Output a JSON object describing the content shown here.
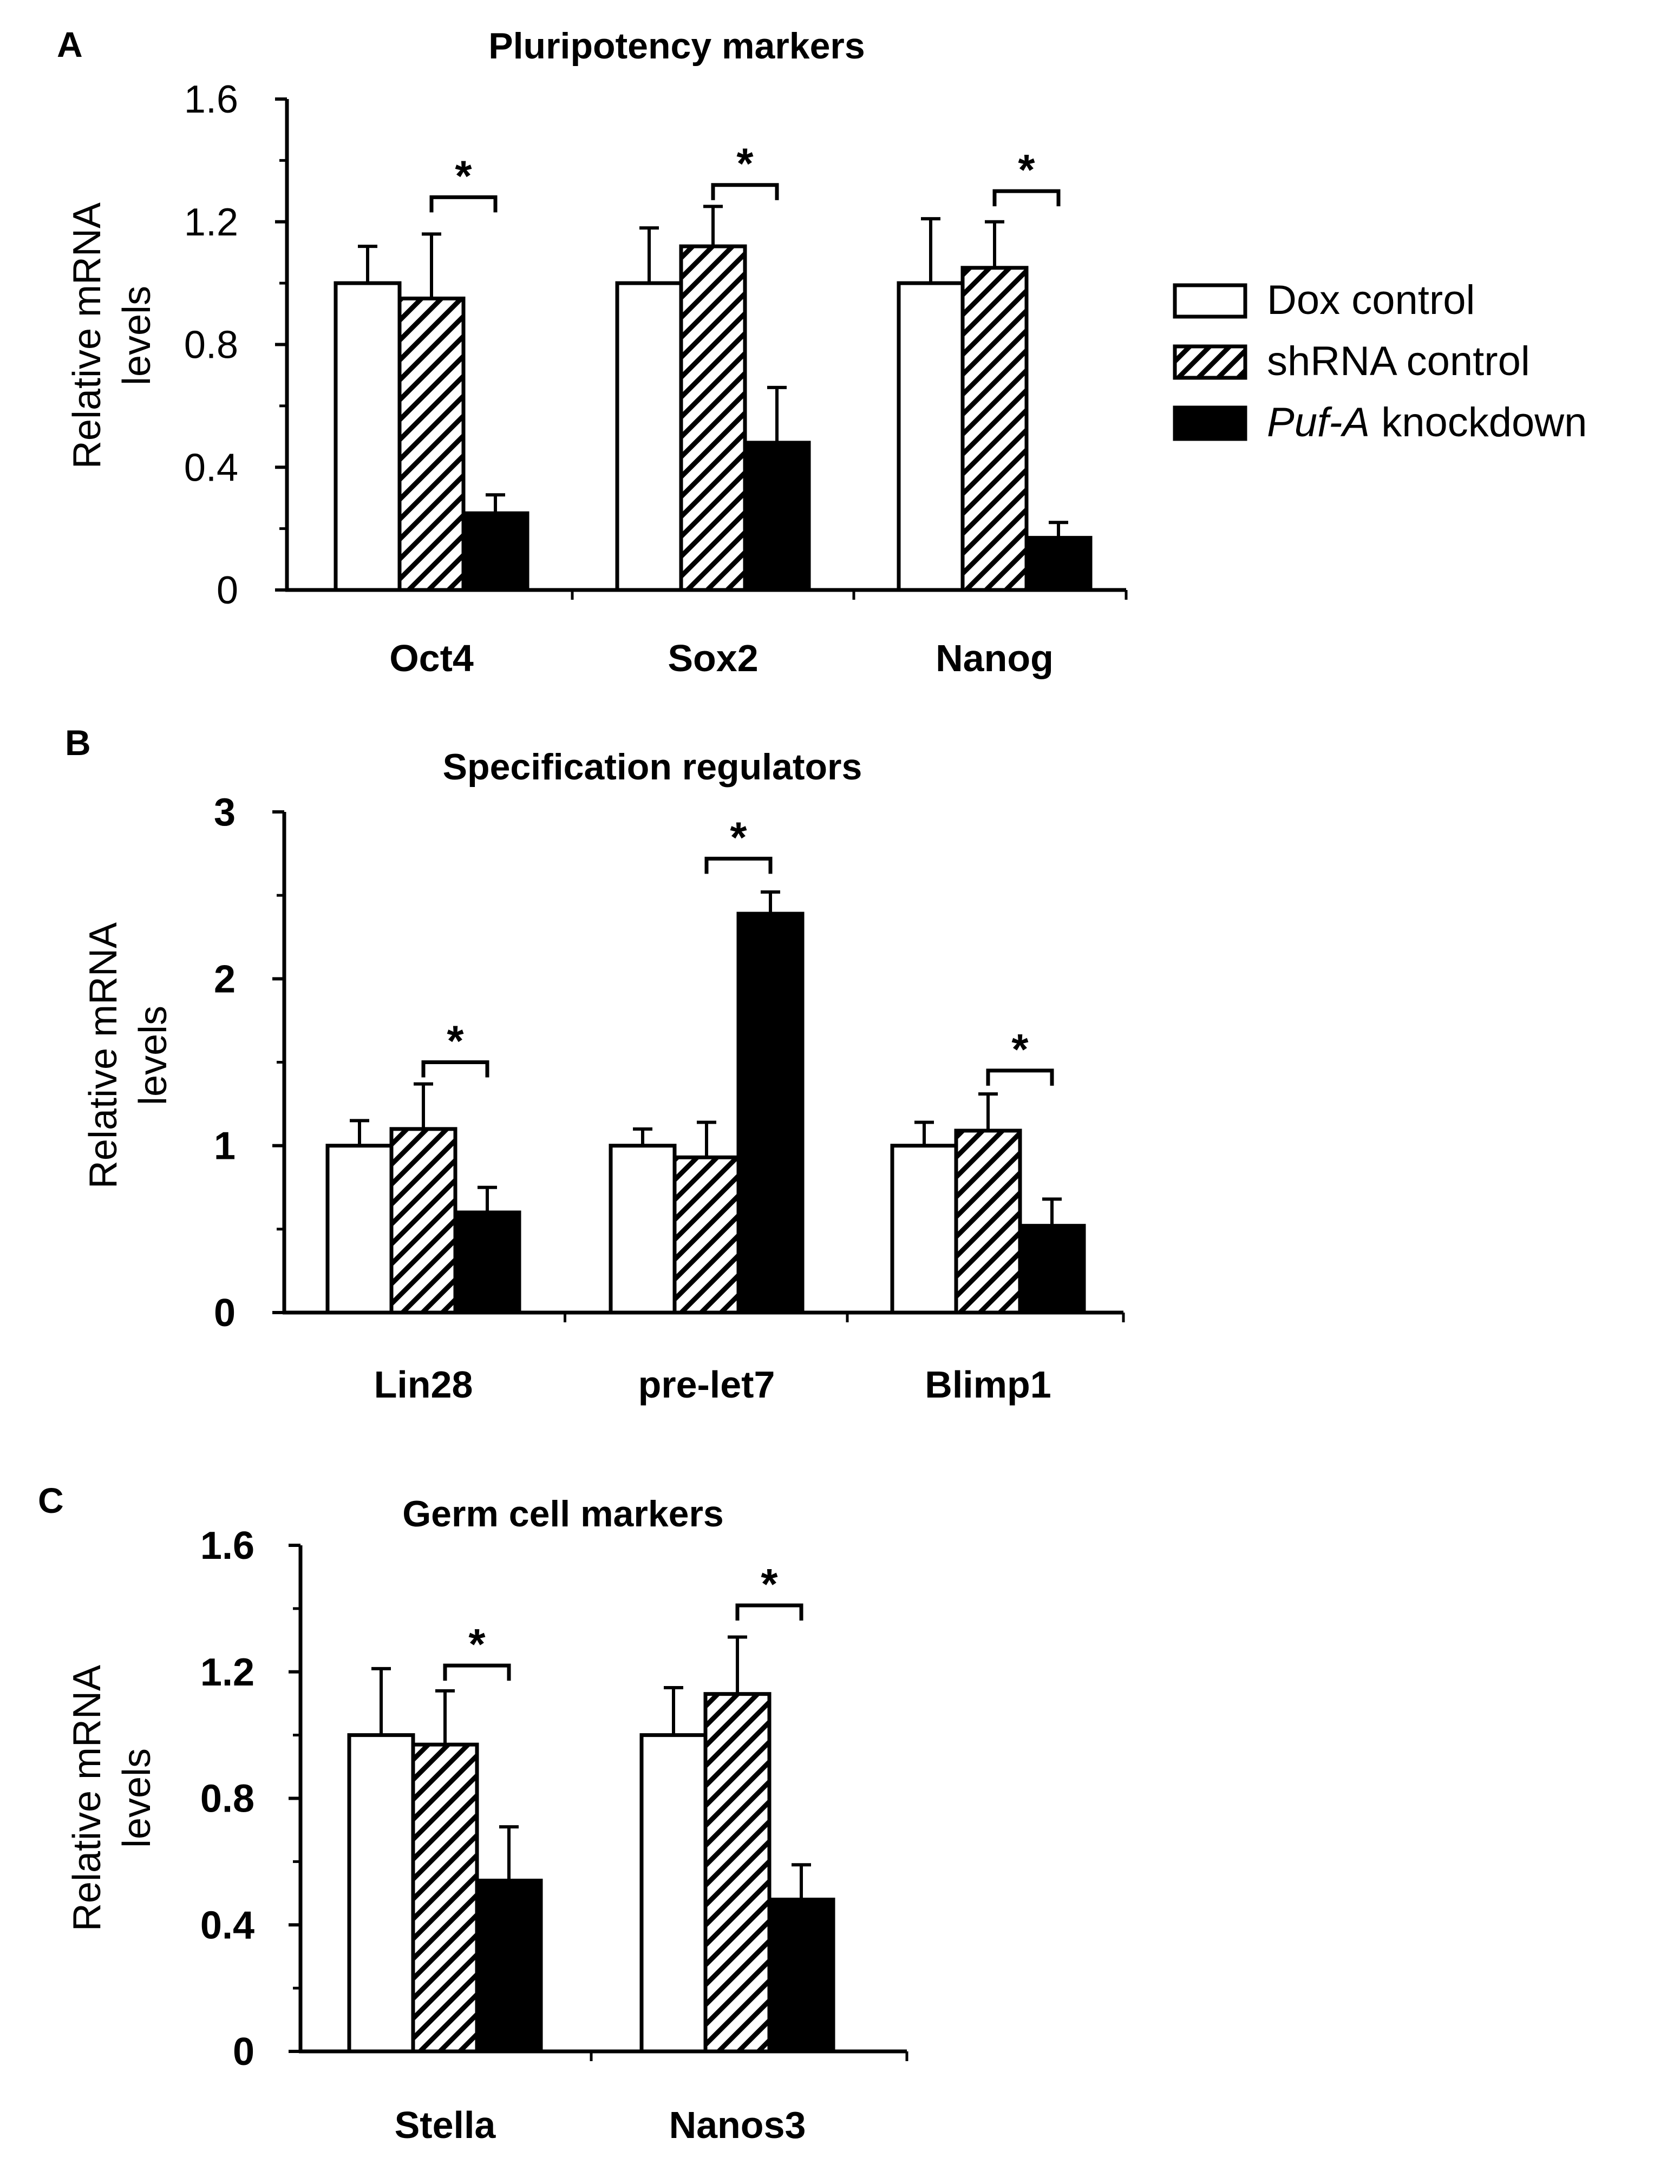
{
  "legend": {
    "items": [
      {
        "label": "Dox control",
        "style": "open"
      },
      {
        "label": "shRNA control",
        "style": "hatched"
      },
      {
        "label_italic": "Puf-A",
        "label_rest": " knockdown",
        "style": "filled"
      }
    ]
  },
  "colors": {
    "axis": "#000000",
    "filled": "#000000",
    "open": "#ffffff"
  },
  "chart_data": [
    {
      "type": "bar",
      "panel": "A",
      "title": "Pluripotency markers",
      "ylabel": "Relative mRNA levels",
      "ylabel_lines": [
        "Relative mRNA",
        "levels"
      ],
      "ylim": [
        0,
        1.6
      ],
      "yticks": [
        0,
        0.4,
        0.8,
        1.2,
        1.6
      ],
      "ytick_labels": [
        "0",
        "0.4",
        "0.8",
        "1.2",
        "1.6"
      ],
      "ytick_bold": false,
      "categories": [
        "Oct4",
        "Sox2",
        "Nanog"
      ],
      "series": [
        {
          "name": "Dox control",
          "values": [
            1.0,
            1.0,
            1.0
          ],
          "errors": [
            0.12,
            0.18,
            0.21
          ]
        },
        {
          "name": "shRNA control",
          "values": [
            0.95,
            1.12,
            1.05
          ],
          "errors": [
            0.21,
            0.13,
            0.15
          ]
        },
        {
          "name": "Puf-A knockdown",
          "values": [
            0.25,
            0.48,
            0.17
          ],
          "errors": [
            0.06,
            0.18,
            0.05
          ]
        }
      ],
      "significance": [
        {
          "category": "Oct4",
          "between": [
            "shRNA control",
            "Puf-A knockdown"
          ],
          "label": "*",
          "level": 1.28
        },
        {
          "category": "Sox2",
          "between": [
            "shRNA control",
            "Puf-A knockdown"
          ],
          "label": "*",
          "level": 1.32
        },
        {
          "category": "Nanog",
          "between": [
            "shRNA control",
            "Puf-A knockdown"
          ],
          "label": "*",
          "level": 1.3
        }
      ]
    },
    {
      "type": "bar",
      "panel": "B",
      "title": "Specification regulators",
      "ylabel": "Relative mRNA levels",
      "ylabel_lines": [
        "Relative mRNA",
        "levels"
      ],
      "ylim": [
        0,
        3
      ],
      "yticks": [
        0,
        1,
        2,
        3
      ],
      "ytick_labels": [
        "0",
        "1",
        "2",
        "3"
      ],
      "ytick_bold": true,
      "categories": [
        "Lin28",
        "pre-let7",
        "Blimp1"
      ],
      "series": [
        {
          "name": "Dox control",
          "values": [
            1.0,
            1.0,
            1.0
          ],
          "errors": [
            0.15,
            0.1,
            0.14
          ]
        },
        {
          "name": "shRNA control",
          "values": [
            1.1,
            0.93,
            1.09
          ],
          "errors": [
            0.27,
            0.21,
            0.22
          ]
        },
        {
          "name": "Puf-A knockdown",
          "values": [
            0.6,
            2.39,
            0.52
          ],
          "errors": [
            0.15,
            0.13,
            0.16
          ]
        }
      ],
      "significance": [
        {
          "category": "Lin28",
          "between": [
            "shRNA control",
            "Puf-A knockdown"
          ],
          "label": "*",
          "level": 1.5
        },
        {
          "category": "pre-let7",
          "between": [
            "shRNA control",
            "Puf-A knockdown"
          ],
          "label": "*",
          "level": 2.72
        },
        {
          "category": "Blimp1",
          "between": [
            "shRNA control",
            "Puf-A knockdown"
          ],
          "label": "*",
          "level": 1.45
        }
      ]
    },
    {
      "type": "bar",
      "panel": "C",
      "title": "Germ cell markers",
      "ylabel": "Relative mRNA levels",
      "ylabel_lines": [
        "Relative mRNA",
        "levels"
      ],
      "ylim": [
        0,
        1.6
      ],
      "yticks": [
        0,
        0.4,
        0.8,
        1.2,
        1.6
      ],
      "ytick_labels": [
        "0",
        "0.4",
        "0.8",
        "1.2",
        "1.6"
      ],
      "ytick_bold": true,
      "categories": [
        "Stella",
        "Nanos3"
      ],
      "series": [
        {
          "name": "Dox control",
          "values": [
            1.0,
            1.0
          ],
          "errors": [
            0.21,
            0.15
          ]
        },
        {
          "name": "shRNA control",
          "values": [
            0.97,
            1.13
          ],
          "errors": [
            0.17,
            0.18
          ]
        },
        {
          "name": "Puf-A knockdown",
          "values": [
            0.54,
            0.48
          ],
          "errors": [
            0.17,
            0.11
          ]
        }
      ],
      "significance": [
        {
          "category": "Stella",
          "between": [
            "shRNA control",
            "Puf-A knockdown"
          ],
          "label": "*",
          "level": 1.22
        },
        {
          "category": "Nanos3",
          "between": [
            "shRNA control",
            "Puf-A knockdown"
          ],
          "label": "*",
          "level": 1.41
        }
      ]
    }
  ]
}
